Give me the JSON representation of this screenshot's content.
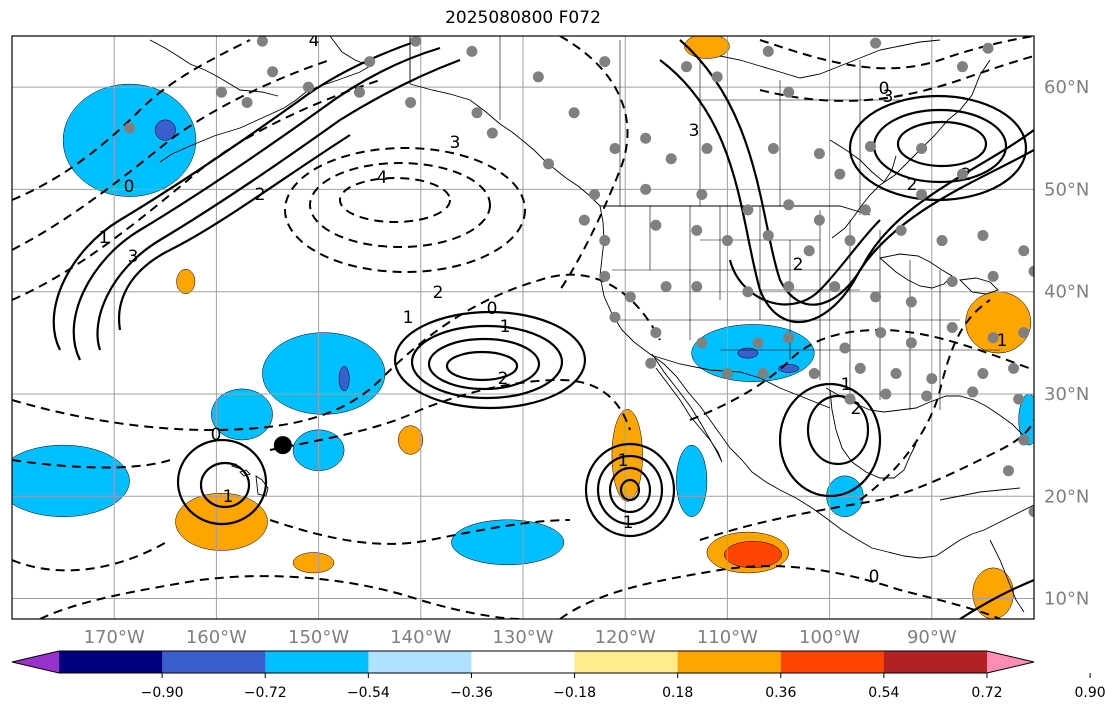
{
  "title": "2025080800 F072",
  "map": {
    "lon_min": -180,
    "lon_max": -80,
    "lat_min": 8,
    "lat_max": 65,
    "lon_ticks": [
      -170,
      -160,
      -150,
      -140,
      -130,
      -120,
      -110,
      -100,
      -90
    ],
    "lon_tick_labels": [
      "170°W",
      "160°W",
      "150°W",
      "140°W",
      "130°W",
      "120°W",
      "110°W",
      "100°W",
      "90°W"
    ],
    "lat_ticks": [
      10,
      20,
      30,
      40,
      50,
      60
    ],
    "lat_tick_labels": [
      "10°N",
      "20°N",
      "30°N",
      "40°N",
      "50°N",
      "60°N"
    ],
    "grid": true,
    "ocean_color": "#ffffff",
    "land_outline_color": "#000000",
    "contour_color": "#000000",
    "station_color": "#808080",
    "marker_color": "#000000"
  },
  "colorbar": {
    "orientation": "horizontal",
    "extend": "both",
    "colors": [
      "#9932cc",
      "#000080",
      "#3a5fcd",
      "#00bfff",
      "#b0e2ff",
      "#ffffff",
      "#ffec8b",
      "#ffa500",
      "#ff4500",
      "#b22222",
      "#ff8cb4"
    ],
    "boundaries": [
      -0.9,
      -0.72,
      -0.54,
      -0.36,
      -0.18,
      0.18,
      0.36,
      0.54,
      0.72,
      0.9
    ],
    "tick_labels": [
      "−0.90",
      "−0.72",
      "−0.54",
      "−0.36",
      "−0.18",
      "0.18",
      "0.36",
      "0.54",
      "0.72",
      "0.90"
    ]
  },
  "contour_labels": [
    "4",
    "3",
    "2",
    "1",
    "0",
    "1",
    "2",
    "3",
    "4",
    "0",
    "2",
    "1",
    "2",
    "3",
    "0",
    "1",
    "2",
    "1",
    "0",
    "1",
    "2",
    "3",
    "2",
    "1",
    "0",
    "1"
  ],
  "shading": {
    "negative_regions": [
      {
        "lon": -168.5,
        "lat": 54.8,
        "rlon": 6.5,
        "rlat": 5.5,
        "level": "#00bfff"
      },
      {
        "lon": -149.5,
        "lat": 32.0,
        "rlon": 6.0,
        "rlat": 4.0,
        "level": "#00bfff"
      },
      {
        "lon": -157.5,
        "lat": 28.0,
        "rlon": 3.0,
        "rlat": 2.5,
        "level": "#00bfff"
      },
      {
        "lon": -150.0,
        "lat": 24.5,
        "rlon": 2.5,
        "rlat": 2.0,
        "level": "#00bfff"
      },
      {
        "lon": -175.0,
        "lat": 21.5,
        "rlon": 6.5,
        "rlat": 3.5,
        "level": "#00bfff"
      },
      {
        "lon": -131.5,
        "lat": 15.5,
        "rlon": 5.5,
        "rlat": 2.2,
        "level": "#00bfff"
      },
      {
        "lon": -107.5,
        "lat": 34.0,
        "rlon": 6.0,
        "rlat": 2.8,
        "level": "#00bfff"
      },
      {
        "lon": -113.5,
        "lat": 21.5,
        "rlon": 1.5,
        "rlat": 3.5,
        "level": "#00bfff"
      },
      {
        "lon": -98.5,
        "lat": 20.0,
        "rlon": 1.8,
        "rlat": 2.0,
        "level": "#00bfff"
      },
      {
        "lon": -80.5,
        "lat": 27.5,
        "rlon": 1.0,
        "rlat": 2.5,
        "level": "#00bfff"
      },
      {
        "lon": -165.0,
        "lat": 55.8,
        "rlon": 1.0,
        "rlat": 1.0,
        "level": "#3a5fcd"
      },
      {
        "lon": -147.5,
        "lat": 31.5,
        "rlon": 0.5,
        "rlat": 1.2,
        "level": "#3a5fcd"
      },
      {
        "lon": -108.0,
        "lat": 34.0,
        "rlon": 1.0,
        "rlat": 0.5,
        "level": "#3a5fcd"
      },
      {
        "lon": -104.0,
        "lat": 32.5,
        "rlon": 1.0,
        "rlat": 0.4,
        "level": "#3a5fcd"
      }
    ],
    "positive_regions": [
      {
        "lon": -159.5,
        "lat": 17.5,
        "rlon": 4.5,
        "rlat": 2.8,
        "level": "#ffa500"
      },
      {
        "lon": -119.8,
        "lat": 24.0,
        "rlon": 1.5,
        "rlat": 4.5,
        "level": "#ffa500"
      },
      {
        "lon": -108.0,
        "lat": 14.5,
        "rlon": 4.0,
        "rlat": 2.0,
        "level": "#ffa500"
      },
      {
        "lon": -107.5,
        "lat": 14.3,
        "rlon": 2.8,
        "rlat": 1.3,
        "level": "#ff4500"
      },
      {
        "lon": -83.5,
        "lat": 37.0,
        "rlon": 3.2,
        "rlat": 3.0,
        "level": "#ffa500"
      },
      {
        "lon": -112.0,
        "lat": 64.0,
        "rlon": 2.2,
        "rlat": 1.2,
        "level": "#ffa500"
      },
      {
        "lon": -141.0,
        "lat": 25.5,
        "rlon": 1.2,
        "rlat": 1.4,
        "level": "#ffa500"
      },
      {
        "lon": -150.5,
        "lat": 13.5,
        "rlon": 2.0,
        "rlat": 1.0,
        "level": "#ffa500"
      },
      {
        "lon": -163.0,
        "lat": 41.0,
        "rlon": 0.9,
        "rlat": 1.2,
        "level": "#ffa500"
      },
      {
        "lon": -84.0,
        "lat": 10.5,
        "rlon": 2.0,
        "rlat": 2.5,
        "level": "#ffa500"
      }
    ]
  },
  "stations": [
    [
      -155.5,
      64.5
    ],
    [
      -154.5,
      61.5
    ],
    [
      -140.5,
      64.5
    ],
    [
      -145,
      62.5
    ],
    [
      -135,
      63.5
    ],
    [
      -128.5,
      61
    ],
    [
      -122,
      62.5
    ],
    [
      -111,
      61
    ],
    [
      -114,
      62
    ],
    [
      -106,
      63.5
    ],
    [
      -104,
      59.5
    ],
    [
      -95.5,
      64.3
    ],
    [
      -84.5,
      63.8
    ],
    [
      -87,
      62
    ],
    [
      -168.5,
      56
    ],
    [
      -159.5,
      59.5
    ],
    [
      -157,
      58.5
    ],
    [
      -151,
      60
    ],
    [
      -146,
      59.5
    ],
    [
      -141,
      58.5
    ],
    [
      -134.5,
      57.5
    ],
    [
      -133,
      55.5
    ],
    [
      -125,
      57.5
    ],
    [
      -127.5,
      52.5
    ],
    [
      -121,
      54
    ],
    [
      -118,
      55
    ],
    [
      -115.5,
      53
    ],
    [
      -112,
      54
    ],
    [
      -105.5,
      54
    ],
    [
      -101,
      53.5
    ],
    [
      -99,
      51.5
    ],
    [
      -96,
      54.2
    ],
    [
      -91,
      54
    ],
    [
      -87,
      51.5
    ],
    [
      -91,
      49.5
    ],
    [
      -123,
      49.5
    ],
    [
      -118,
      50
    ],
    [
      -112.5,
      49.5
    ],
    [
      -108,
      48
    ],
    [
      -104,
      48.5
    ],
    [
      -101,
      47
    ],
    [
      -96.5,
      48
    ],
    [
      -93,
      46
    ],
    [
      -89,
      45
    ],
    [
      -85,
      45.5
    ],
    [
      -81,
      44
    ],
    [
      -124,
      47
    ],
    [
      -122,
      45
    ],
    [
      -117,
      46.5
    ],
    [
      -113,
      46
    ],
    [
      -110,
      45
    ],
    [
      -106,
      45.5
    ],
    [
      -102,
      44
    ],
    [
      -98,
      45
    ],
    [
      -122,
      41.5
    ],
    [
      -119.5,
      39.5
    ],
    [
      -116,
      40.5
    ],
    [
      -113,
      40.5
    ],
    [
      -108,
      40
    ],
    [
      -104,
      40.5
    ],
    [
      -99.5,
      40.5
    ],
    [
      -95.5,
      39.5
    ],
    [
      -92,
      39
    ],
    [
      -88,
      41
    ],
    [
      -84,
      41.5
    ],
    [
      -80,
      42
    ],
    [
      -121,
      37.5
    ],
    [
      -117,
      36
    ],
    [
      -112.5,
      35
    ],
    [
      -107,
      35
    ],
    [
      -104,
      35.5
    ],
    [
      -98.5,
      34.5
    ],
    [
      -95,
      36
    ],
    [
      -92,
      35
    ],
    [
      -88,
      36.5
    ],
    [
      -84,
      35.5
    ],
    [
      -81,
      36
    ],
    [
      -117.5,
      33
    ],
    [
      -110,
      32
    ],
    [
      -106.5,
      32
    ],
    [
      -101.5,
      32
    ],
    [
      -97,
      32.5
    ],
    [
      -93.5,
      32
    ],
    [
      -90,
      31.5
    ],
    [
      -85,
      32
    ],
    [
      -82,
      32.5
    ],
    [
      -98,
      29.5
    ],
    [
      -94.5,
      30
    ],
    [
      -90.5,
      29.8
    ],
    [
      -86,
      30.2
    ],
    [
      -81.5,
      29.5
    ],
    [
      -81,
      25.5
    ],
    [
      -82.5,
      22.5
    ],
    [
      -80,
      18.5
    ]
  ],
  "marker": {
    "lon": -153.5,
    "lat": 25.0
  }
}
